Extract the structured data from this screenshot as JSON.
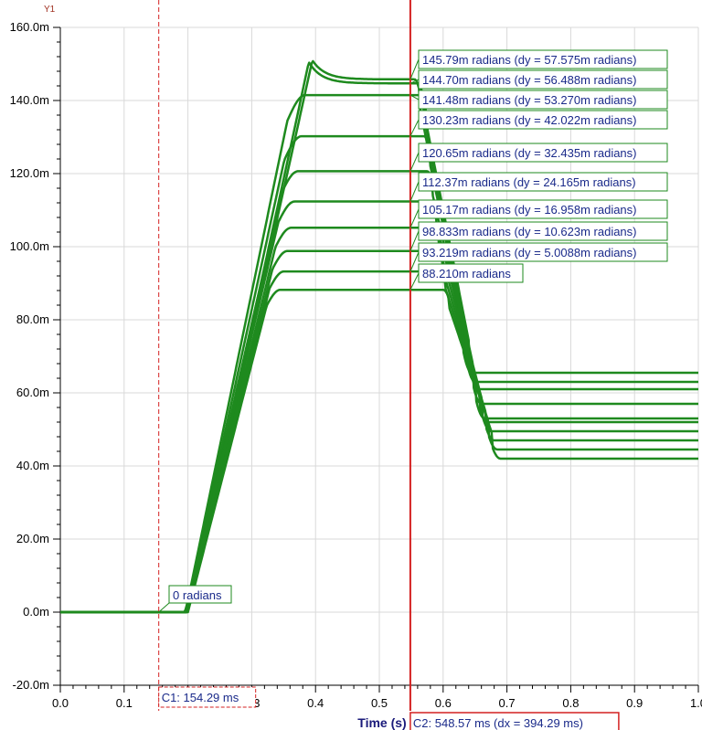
{
  "chart_data": {
    "type": "line",
    "y_axis_name": "Y1",
    "xlabel": "Time (s)",
    "ylabel": "",
    "xlim": [
      0,
      1.0
    ],
    "ylim": [
      -20,
      160
    ],
    "x_ticks": [
      0.0,
      0.1,
      0.2,
      0.3,
      0.4,
      0.5,
      0.6,
      0.7,
      0.8,
      0.9,
      1.0
    ],
    "x_tick_labels": [
      "0.0",
      "0.1",
      "0.2",
      "0.3",
      "0.4",
      "0.5",
      "0.6",
      "0.7",
      "0.8",
      "0.9",
      "1.0"
    ],
    "y_ticks": [
      -20,
      0,
      20,
      40,
      60,
      80,
      100,
      120,
      140,
      160
    ],
    "y_tick_labels": [
      "-20.0m",
      "0.0m",
      "20.0m",
      "40.0m",
      "60.0m",
      "80.0m",
      "100.0m",
      "120.0m",
      "140.0m",
      "160.0m"
    ],
    "grid": true,
    "line_color": "#1e8a1e",
    "cursor_color": "#d42020",
    "series": [
      {
        "plateau": 88.21,
        "final": 42.0,
        "peak_x": 0.6,
        "peak": null
      },
      {
        "plateau": 93.219,
        "final": 44.5,
        "peak_x": 0.595,
        "peak": null
      },
      {
        "plateau": 98.833,
        "final": 47.0,
        "peak_x": 0.59,
        "peak": null
      },
      {
        "plateau": 105.17,
        "final": 49.5,
        "peak_x": 0.585,
        "peak": null
      },
      {
        "plateau": 112.37,
        "final": 52.0,
        "peak_x": 0.58,
        "peak": null
      },
      {
        "plateau": 120.65,
        "final": 53.0,
        "peak_x": 0.575,
        "peak": null
      },
      {
        "plateau": 130.23,
        "final": 57.0,
        "peak_x": 0.57,
        "peak": null
      },
      {
        "plateau": 141.48,
        "final": 61.0,
        "peak_x": 0.565,
        "peak": null
      },
      {
        "plateau": 144.7,
        "final": 63.0,
        "peak_x": 0.56,
        "peak": 150.5
      },
      {
        "plateau": 145.79,
        "final": 65.5,
        "peak_x": 0.555,
        "peak": 151.0
      }
    ],
    "callouts": [
      {
        "text": "145.79m radians (dy = 57.575m radians)",
        "y": 145.79
      },
      {
        "text": "144.70m radians (dy = 56.488m radians)",
        "y": 144.7
      },
      {
        "text": "141.48m radians (dy = 53.270m radians)",
        "y": 141.48
      },
      {
        "text": "130.23m radians (dy = 42.022m radians)",
        "y": 130.23
      },
      {
        "text": "120.65m radians (dy = 32.435m radians)",
        "y": 120.65
      },
      {
        "text": "112.37m radians (dy = 24.165m radians)",
        "y": 112.37
      },
      {
        "text": "105.17m radians (dy = 16.958m radians)",
        "y": 105.17
      },
      {
        "text": "98.833m radians (dy = 10.623m radians)",
        "y": 98.833
      },
      {
        "text": "93.219m radians (dy = 5.0088m radians)",
        "y": 93.219
      },
      {
        "text": "88.210m radians",
        "y": 88.21
      }
    ],
    "c1_callout": "0 radians",
    "cursors": {
      "c1": {
        "x": 0.15429,
        "label": "C1: 154.29 ms"
      },
      "c2": {
        "x": 0.54857,
        "label": "C2: 548.57 ms (dx = 394.29 ms)"
      }
    }
  }
}
